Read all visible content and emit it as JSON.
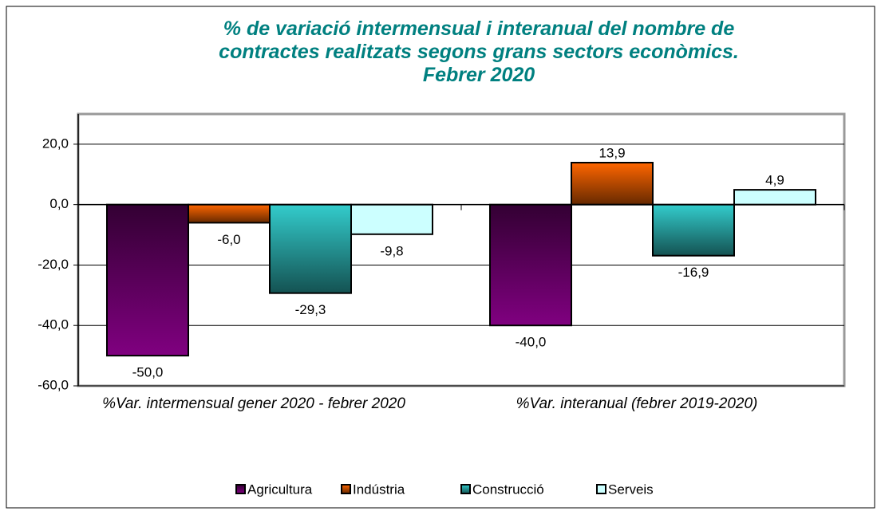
{
  "chart_data": {
    "type": "bar",
    "title": "% de variació intermensual i interanual del nombre de\ncontractes realitzats segons grans sectors econòmics.\nFebrer 2020",
    "categories": [
      "%Var. intermensual gener 2020 - febrer 2020",
      "%Var. interanual (febrer 2019-2020)"
    ],
    "series": [
      {
        "name": "Agricultura",
        "color": "#800080",
        "values": [
          -50.0,
          -40.0
        ],
        "value_labels": [
          "-50,0",
          "-40,0"
        ]
      },
      {
        "name": "Indústria",
        "color": "#ff6600",
        "values": [
          -6.0,
          13.9
        ],
        "value_labels": [
          "-6,0",
          "13,9"
        ]
      },
      {
        "name": "Construcció",
        "color": "#33cccc",
        "values": [
          -29.3,
          -16.9
        ],
        "value_labels": [
          "-29,3",
          "-16,9"
        ]
      },
      {
        "name": "Serveis",
        "color": "#ccffff",
        "values": [
          -9.8,
          4.9
        ],
        "value_labels": [
          "-9,8",
          "4,9"
        ]
      }
    ],
    "ylim": [
      -60,
      30
    ],
    "yticks": [
      {
        "value": -60,
        "label": "-60,0"
      },
      {
        "value": -40,
        "label": "-40,0"
      },
      {
        "value": -20,
        "label": "-20,0"
      },
      {
        "value": 0,
        "label": "0,0"
      },
      {
        "value": 20,
        "label": "20,0"
      }
    ],
    "grid": true
  }
}
